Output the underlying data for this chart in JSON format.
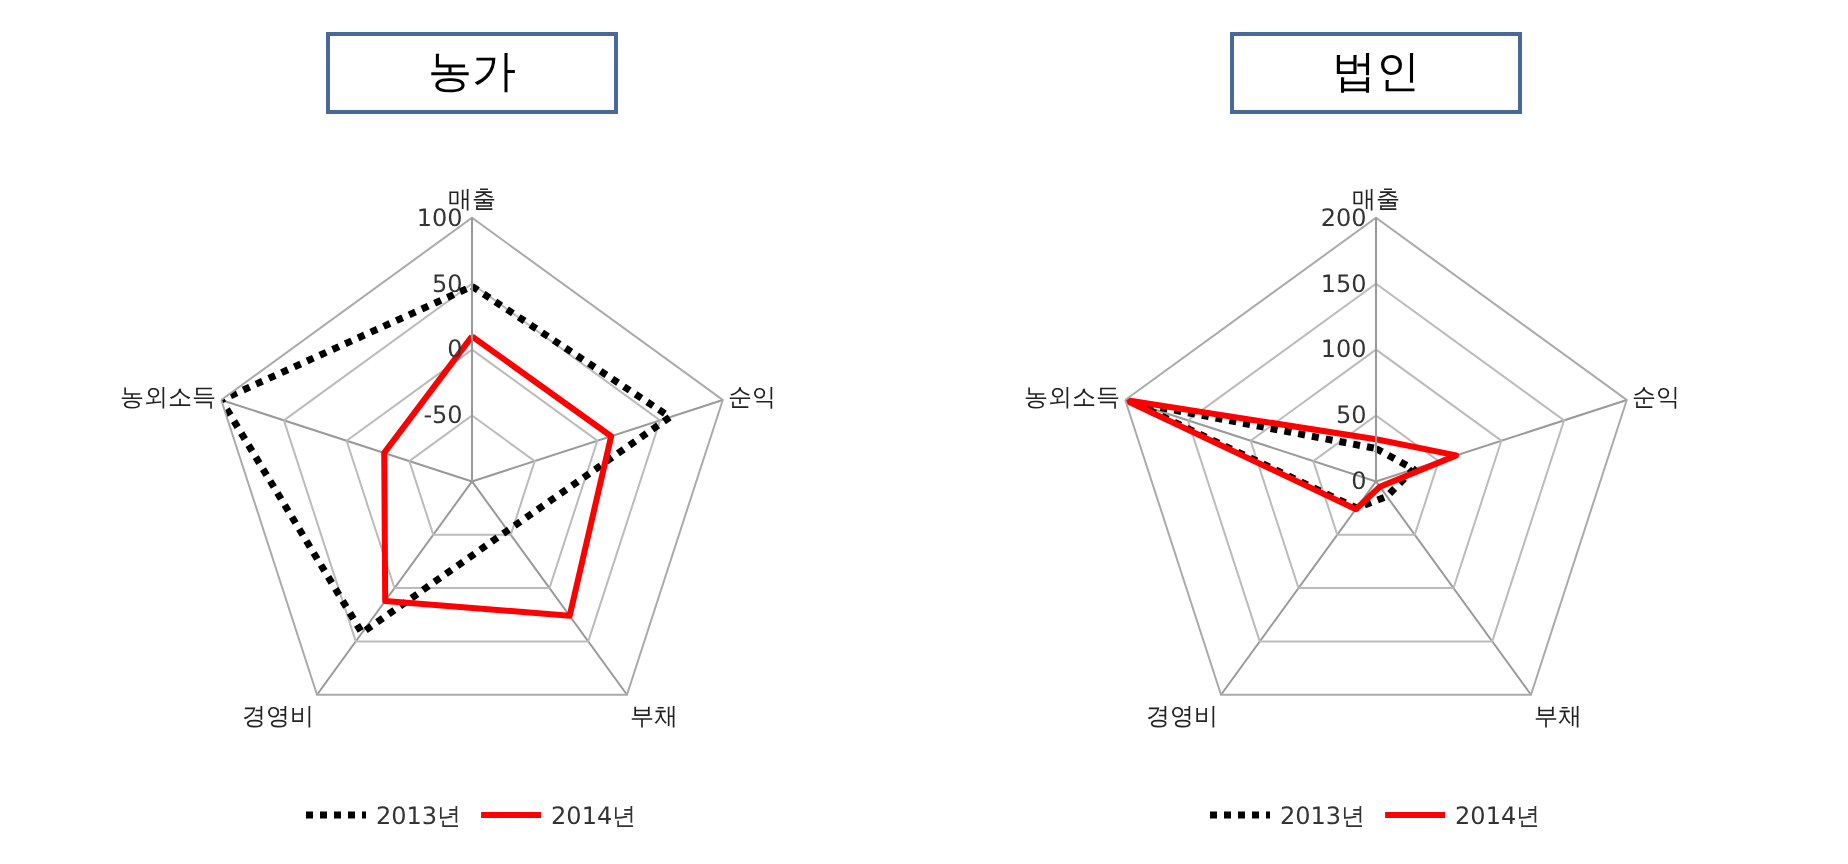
{
  "chart_data": [
    {
      "type": "radar",
      "title": "농가",
      "categories": [
        "매출",
        "순익",
        "부채",
        "경영비",
        "농외소득"
      ],
      "ylim": [
        -100,
        100
      ],
      "yticks": [
        -50,
        0,
        50,
        100
      ],
      "grid": true,
      "legend": "bottom",
      "series": [
        {
          "name": "2013년",
          "color": "#000000",
          "line_style": "dotted",
          "values": [
            48,
            58,
            -54,
            42,
            100
          ]
        },
        {
          "name": "2014년",
          "color": "#ff0000",
          "line_style": "solid",
          "values": [
            10,
            11,
            26,
            12,
            -30
          ]
        }
      ]
    },
    {
      "type": "radar",
      "title": "법인",
      "categories": [
        "매출",
        "순익",
        "부채",
        "경영비",
        "농외소득"
      ],
      "ylim": [
        0,
        200
      ],
      "yticks": [
        0,
        50,
        100,
        150,
        200
      ],
      "grid": true,
      "legend": "bottom",
      "series": [
        {
          "name": "2013년",
          "color": "#000000",
          "line_style": "dotted",
          "values": [
            25,
            30,
            14,
            25,
            195
          ]
        },
        {
          "name": "2014년",
          "color": "#ff0000",
          "line_style": "solid",
          "values": [
            32,
            64,
            5,
            26,
            200
          ]
        }
      ]
    }
  ]
}
